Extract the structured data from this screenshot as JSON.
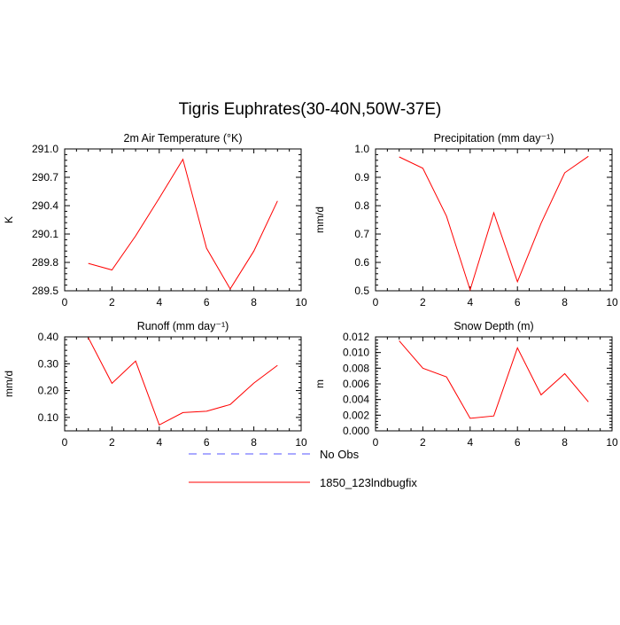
{
  "title": "Tigris Euphrates(30-40N,50W-37E)",
  "legend": [
    {
      "label": "No Obs",
      "color": "#5555ff",
      "style": "dashed"
    },
    {
      "label": "1850_123lndbugfix",
      "color": "#ff0000",
      "style": "solid"
    }
  ],
  "chart_data": [
    {
      "type": "line",
      "title": "2m Air Temperature (°K)",
      "ylabel": "K",
      "xlim": [
        0,
        10
      ],
      "ylim": [
        289.5,
        291.0
      ],
      "xticks": [
        0,
        2,
        4,
        6,
        8,
        10
      ],
      "yticks": [
        "289.5",
        "289.8",
        "290.1",
        "290.4",
        "290.7",
        "291.0"
      ],
      "x": [
        1,
        2,
        3,
        4,
        5,
        6,
        7,
        8,
        9
      ],
      "series": [
        {
          "name": "1850_123lndbugfix",
          "color": "#ff0000",
          "values": [
            289.79,
            289.72,
            290.08,
            290.48,
            290.89,
            289.95,
            289.52,
            289.92,
            290.45
          ]
        }
      ]
    },
    {
      "type": "line",
      "title": "Precipitation (mm day⁻¹)",
      "ylabel": "mm/d",
      "xlim": [
        0,
        10
      ],
      "ylim": [
        0.5,
        1.0
      ],
      "xticks": [
        0,
        2,
        4,
        6,
        8,
        10
      ],
      "yticks": [
        "0.5",
        "0.6",
        "0.7",
        "0.8",
        "0.9",
        "1.0"
      ],
      "x": [
        1,
        2,
        3,
        4,
        5,
        6,
        7,
        8,
        9
      ],
      "series": [
        {
          "name": "1850_123lndbugfix",
          "color": "#ff0000",
          "values": [
            0.972,
            0.932,
            0.763,
            0.503,
            0.775,
            0.532,
            0.738,
            0.916,
            0.974
          ]
        }
      ]
    },
    {
      "type": "line",
      "title": "Runoff (mm day⁻¹)",
      "ylabel": "mm/d",
      "xlim": [
        0,
        10
      ],
      "ylim": [
        0.05,
        0.4
      ],
      "xticks": [
        0,
        2,
        4,
        6,
        8,
        10
      ],
      "yticks": [
        "0.10",
        "0.20",
        "0.30",
        "0.40"
      ],
      "x": [
        1,
        2,
        3,
        4,
        5,
        6,
        7,
        8,
        9
      ],
      "series": [
        {
          "name": "1850_123lndbugfix",
          "color": "#ff0000",
          "values": [
            0.397,
            0.227,
            0.31,
            0.072,
            0.118,
            0.123,
            0.148,
            0.228,
            0.294
          ]
        }
      ]
    },
    {
      "type": "line",
      "title": "Snow Depth (m)",
      "ylabel": "m",
      "xlim": [
        0,
        10
      ],
      "ylim": [
        0.0,
        0.012
      ],
      "xticks": [
        0,
        2,
        4,
        6,
        8,
        10
      ],
      "yticks": [
        "0.000",
        "0.002",
        "0.004",
        "0.006",
        "0.008",
        "0.010",
        "0.012"
      ],
      "x": [
        1,
        2,
        3,
        4,
        5,
        6,
        7,
        8,
        9
      ],
      "series": [
        {
          "name": "1850_123lndbugfix",
          "color": "#ff0000",
          "values": [
            0.0115,
            0.008,
            0.0069,
            0.0016,
            0.0019,
            0.0106,
            0.0046,
            0.0073,
            0.0037
          ]
        }
      ]
    }
  ]
}
